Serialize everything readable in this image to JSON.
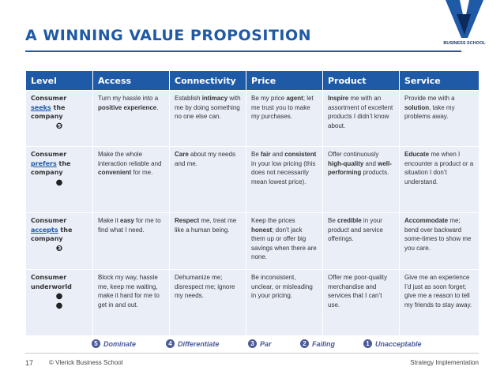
{
  "slide": {
    "title": "A WINNING VALUE PROPOSITION",
    "logo_text": "BUSINESS SCHOOL",
    "logo_letter": "V",
    "page_number": "17",
    "copyright": "© Vlerick Business School",
    "section": "Strategy Implementation"
  },
  "table": {
    "headers": [
      "Level",
      "Access",
      "Connectivity",
      "Price",
      "Product",
      "Service"
    ],
    "rows": [
      {
        "level": {
          "pre": "Consumer",
          "verb": "seeks",
          "post": "the company",
          "badge": "❺"
        },
        "access": {
          "a": "Turn my hassle into a ",
          "b": "positive experience",
          "c": "."
        },
        "connectivity": {
          "a": "Establish ",
          "b": "intimacy",
          "c": " with me by doing something no one else can."
        },
        "price": {
          "a": "Be my price ",
          "b": "agent",
          "c": "; let me trust you to make my purchases."
        },
        "product": {
          "a": "",
          "b": "Inspire",
          "c": " me with an assortment of excellent products I didn’t know about."
        },
        "service": {
          "a": "Provide me with a ",
          "b": "solution",
          "c": ", take my problems away."
        }
      },
      {
        "level": {
          "pre": "Consumer",
          "verb": "prefers",
          "post": "the company",
          "badge": "●"
        },
        "access": {
          "a": "Make the whole interaction reliable and ",
          "b": "convenient",
          "c": " for me."
        },
        "connectivity": {
          "a": "",
          "b": "Care",
          "c": " about my needs and me."
        },
        "price": {
          "a": "Be ",
          "b": "fair",
          "c": " and ",
          "d": "consistent",
          "e": " in your low pricing (this does not necessarily mean lowest price)."
        },
        "product": {
          "a": "Offer continuously ",
          "b": "high-quality",
          "c": " and ",
          "d": "well-performing",
          "e": " products."
        },
        "service": {
          "a": "",
          "b": "Educate",
          "c": " me when I encounter a product or a situation I don’t understand."
        }
      },
      {
        "level": {
          "pre": "Consumer",
          "verb": "accepts",
          "post": "the company",
          "badge": "❸"
        },
        "access": {
          "a": "Make it ",
          "b": "easy",
          "c": " for me to find what I need."
        },
        "connectivity": {
          "a": "",
          "b": "Respect",
          "c": " me, treat me like a human being."
        },
        "price": {
          "a": "Keep the prices ",
          "b": "honest",
          "c": "; don’t jack them up or offer big savings when there are none."
        },
        "product": {
          "a": "Be ",
          "b": "credible",
          "c": " in your product and service offerings."
        },
        "service": {
          "a": "",
          "b": "Accommodate",
          "c": " me; bend over backward some-times to show me you care."
        }
      },
      {
        "level": {
          "pre": "Consumer",
          "verb": "",
          "post": "underworld",
          "badge": "●\n●"
        },
        "access": {
          "a": "Block my way, hassle me, keep me waiting, make it hard for me to get in and out.",
          "b": "",
          "c": ""
        },
        "connectivity": {
          "a": "Dehumanize me; disrespect me; ignore my needs.",
          "b": "",
          "c": ""
        },
        "price": {
          "a": "Be inconsistent, unclear, or misleading in your pricing.",
          "b": "",
          "c": ""
        },
        "product": {
          "a": "Offer me poor-quality merchandise and services that I can’t use.",
          "b": "",
          "c": ""
        },
        "service": {
          "a": "Give me an experience I’d just as soon forget; give me a reason to tell my friends to stay away.",
          "b": "",
          "c": ""
        }
      }
    ]
  },
  "legend": [
    {
      "num": "5",
      "label": "Dominate"
    },
    {
      "num": "4",
      "label": "Differentiate"
    },
    {
      "num": "3",
      "label": "Par"
    },
    {
      "num": "2",
      "label": "Failing"
    },
    {
      "num": "1",
      "label": "Unacceptable"
    }
  ],
  "colors": {
    "brand_blue": "#1f5aa6",
    "cell_bg": "#e9eef7",
    "legend": "#4a5a9a"
  }
}
